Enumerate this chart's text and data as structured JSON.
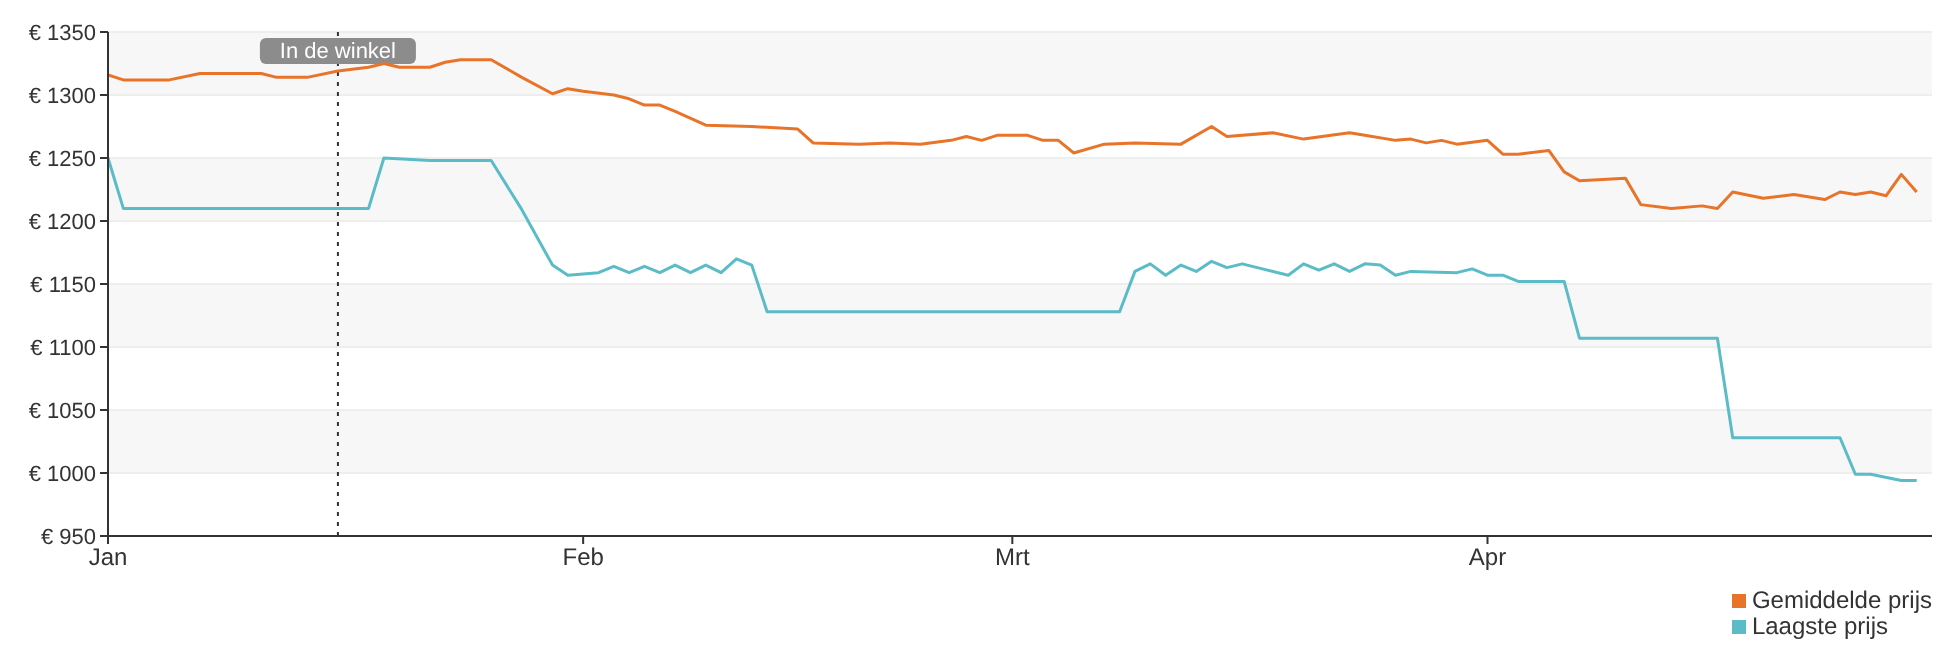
{
  "chart_data": {
    "type": "line",
    "x": [
      "--01-01",
      "--01-02",
      "--01-05",
      "--01-07",
      "--01-11",
      "--01-12",
      "--01-14",
      "--01-16",
      "--01-18",
      "--01-19",
      "--01-20",
      "--01-22",
      "--01-23",
      "--01-24",
      "--01-26",
      "--01-28",
      "--01-30",
      "--01-31",
      "--02-01",
      "--02-03",
      "--02-04",
      "--02-05",
      "--02-06",
      "--02-07",
      "--02-09",
      "--02-12",
      "--02-15",
      "--02-16",
      "--02-19",
      "--02-21",
      "--02-23",
      "--02-25",
      "--02-26",
      "--02-27",
      "--02-28",
      "--03-02",
      "--03-03",
      "--03-04",
      "--03-05",
      "--03-07",
      "--03-09",
      "--03-12",
      "--03-14",
      "--03-15",
      "--03-18",
      "--03-20",
      "--03-23",
      "--03-24",
      "--03-26",
      "--03-27",
      "--03-28",
      "--03-29",
      "--03-30",
      "--04-01",
      "--04-02",
      "--04-03",
      "--04-05",
      "--04-06",
      "--04-07",
      "--04-10",
      "--04-11",
      "--04-13",
      "--04-15",
      "--04-16",
      "--04-17",
      "--04-19",
      "--04-21",
      "--04-23",
      "--04-24",
      "--04-25",
      "--04-26",
      "--04-27",
      "--04-28",
      "--04-29"
    ],
    "series": [
      {
        "name": "Gemiddelde prijs",
        "color": "#e8742a",
        "values": [
          1316,
          1312,
          1312,
          1317,
          1317,
          1314,
          1314,
          1319,
          1322,
          1325,
          1322,
          1322,
          1326,
          1328,
          1328,
          1314,
          1301,
          1305,
          1303,
          1300,
          1297,
          1292,
          1292,
          1287,
          1276,
          1275,
          1273,
          1262,
          1261,
          1262,
          1261,
          1264,
          1267,
          1264,
          1268,
          1268,
          1264,
          1264,
          1254,
          1261,
          1262,
          1261,
          1275,
          1267,
          1270,
          1265,
          1270,
          1268,
          1264,
          1265,
          1262,
          1264,
          1261,
          1264,
          1253,
          1253,
          1256,
          1239,
          1232,
          1234,
          1213,
          1210,
          1212,
          1210,
          1223,
          1218,
          1221,
          1217,
          1223,
          1221,
          1223,
          1220,
          1237,
          1223
        ]
      },
      {
        "name": "Laagste prijs",
        "color": "#5bbcc8",
        "x": [
          "--01-01",
          "--01-02",
          "--01-18",
          "--01-19",
          "--01-22",
          "--01-26",
          "--01-28",
          "--01-30",
          "--01-31",
          "--02-02",
          "--02-03",
          "--02-04",
          "--02-05",
          "--02-06",
          "--02-07",
          "--02-08",
          "--02-09",
          "--02-10",
          "--02-11",
          "--02-12",
          "--02-13",
          "--03-08",
          "--03-09",
          "--03-10",
          "--03-11",
          "--03-12",
          "--03-13",
          "--03-14",
          "--03-15",
          "--03-16",
          "--03-19",
          "--03-20",
          "--03-21",
          "--03-22",
          "--03-23",
          "--03-24",
          "--03-25",
          "--03-26",
          "--03-27",
          "--03-30",
          "--03-31",
          "--04-01",
          "--04-02",
          "--04-03",
          "--04-06",
          "--04-07",
          "--04-16",
          "--04-17",
          "--04-24",
          "--04-25",
          "--04-26",
          "--04-28",
          "--04-29"
        ],
        "values": [
          1250,
          1210,
          1210,
          1250,
          1248,
          1248,
          1209,
          1165,
          1157,
          1159,
          1164,
          1159,
          1164,
          1159,
          1165,
          1159,
          1165,
          1159,
          1170,
          1165,
          1128,
          1128,
          1160,
          1166,
          1157,
          1165,
          1160,
          1168,
          1163,
          1166,
          1157,
          1166,
          1161,
          1166,
          1160,
          1166,
          1165,
          1157,
          1160,
          1159,
          1162,
          1157,
          1157,
          1152,
          1152,
          1107,
          1107,
          1028,
          1028,
          999,
          999,
          994,
          994
        ]
      }
    ],
    "xlim": [
      "--01-01",
      "--04-30"
    ],
    "xticks": [
      {
        "value": "--01-01",
        "label": "Jan"
      },
      {
        "value": "--02-01",
        "label": "Feb"
      },
      {
        "value": "--03-01",
        "label": "Mrt"
      },
      {
        "value": "--04-01",
        "label": "Apr"
      }
    ],
    "ylim": [
      950,
      1350
    ],
    "yticks": [
      {
        "value": 950,
        "label": "€ 950"
      },
      {
        "value": 1000,
        "label": "€ 1000"
      },
      {
        "value": 1050,
        "label": "€ 1050"
      },
      {
        "value": 1100,
        "label": "€ 1100"
      },
      {
        "value": 1150,
        "label": "€ 1150"
      },
      {
        "value": 1200,
        "label": "€ 1200"
      },
      {
        "value": 1250,
        "label": "€ 1250"
      },
      {
        "value": 1300,
        "label": "€ 1300"
      },
      {
        "value": 1350,
        "label": "€ 1350"
      }
    ],
    "ref_lines": [
      {
        "axis": "x",
        "value": "--01-16",
        "label": "In de winkel",
        "color": "#333333",
        "line_style": "dotted"
      }
    ],
    "grid": "y",
    "legend": "bottom right",
    "marker": "none",
    "line_style": "solid"
  }
}
